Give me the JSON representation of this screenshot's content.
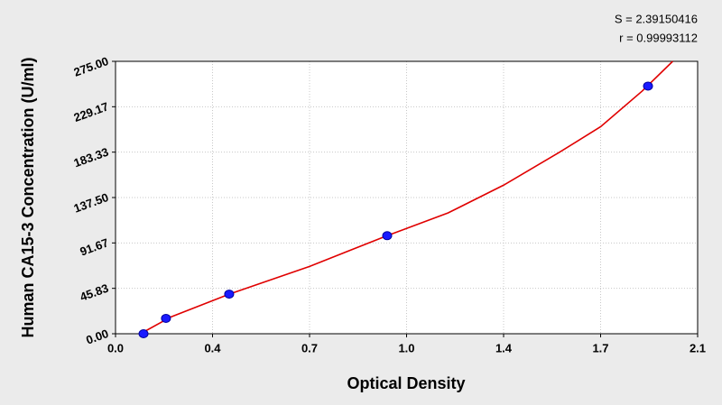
{
  "chart_data": {
    "type": "scatter",
    "annotations": [
      "S = 2.39150416",
      "r = 0.99993112"
    ],
    "xlabel": "Optical Density",
    "ylabel": "Human CA15-3 Concentration (U/ml)",
    "xlim": [
      0,
      2.1
    ],
    "ylim": [
      0,
      275
    ],
    "xticks": [
      {
        "value": 0,
        "label": "0.0"
      },
      {
        "value": 0.35,
        "label": "0.4"
      },
      0.7,
      {
        "value": 1.05,
        "label": "1.0"
      },
      1.4,
      {
        "value": 1.75,
        "label": "1.7"
      },
      2.1
    ],
    "yticks": [
      {
        "value": 0,
        "label": "0.00"
      },
      45.83,
      91.67,
      {
        "value": 137.5,
        "label": "137.50"
      },
      183.33,
      229.17,
      {
        "value": 275,
        "label": "275.00"
      }
    ],
    "grid": true,
    "series": [
      {
        "mode": "line",
        "color": "#e00000",
        "x": [
          0.09,
          0.2,
          0.41,
          0.7,
          0.98,
          1.2,
          1.4,
          1.6,
          1.75,
          1.9,
          2.01
        ],
        "values": [
          0,
          17,
          40,
          68,
          99,
          122,
          150,
          183,
          209,
          245,
          275
        ]
      },
      {
        "mode": "markers",
        "color": "#1a1aff",
        "x": [
          0.101,
          0.182,
          0.41,
          0.98,
          1.921
        ],
        "values": [
          0,
          15.5,
          40,
          99,
          250
        ]
      }
    ]
  }
}
